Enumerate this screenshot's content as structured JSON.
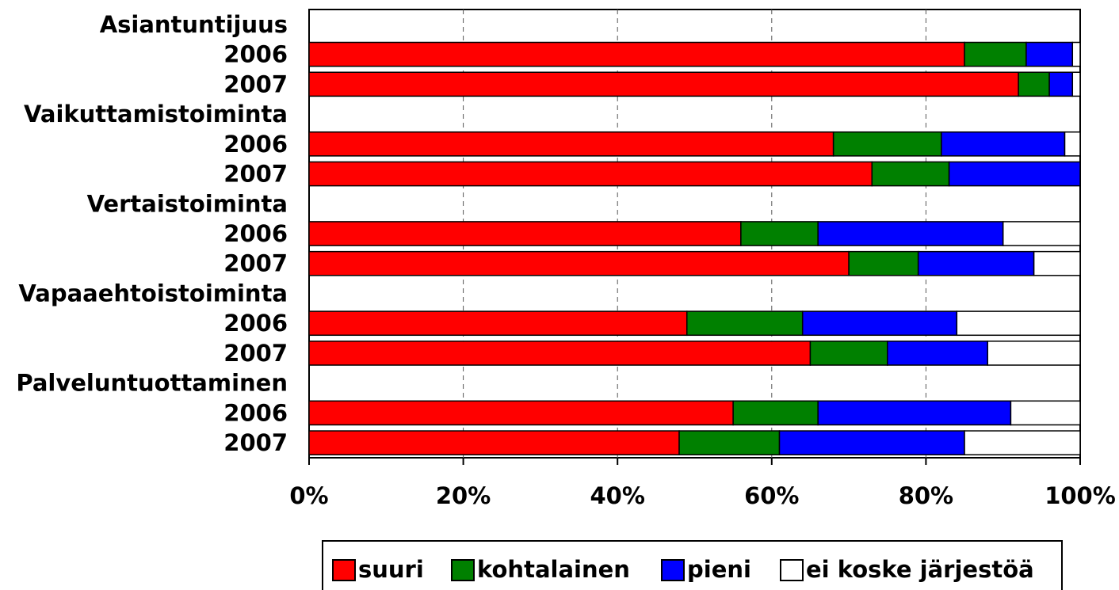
{
  "chart_data": {
    "type": "stacked_barh",
    "categories": [
      "Asiantuntijuus",
      "2006",
      "2007",
      "Vaikuttamistoiminta",
      "2006",
      "2007",
      "Vertaistoiminta",
      "2006",
      "2007",
      "Vapaaehtoistoiminta",
      "2006",
      "2007",
      "Palveluntuottaminen",
      "2006",
      "2007"
    ],
    "series": [
      {
        "name": "suuri",
        "color": "#ff0000",
        "values": [
          null,
          85,
          92,
          null,
          68,
          73,
          null,
          56,
          70,
          null,
          49,
          65,
          null,
          55,
          48
        ]
      },
      {
        "name": "kohtalainen",
        "color": "#008000",
        "values": [
          null,
          8,
          4,
          null,
          14,
          10,
          null,
          10,
          9,
          null,
          15,
          10,
          null,
          11,
          13
        ]
      },
      {
        "name": "pieni",
        "color": "#0000ff",
        "values": [
          null,
          6,
          3,
          null,
          16,
          17,
          null,
          24,
          15,
          null,
          20,
          13,
          null,
          25,
          24
        ]
      },
      {
        "name": "ei koske järjestöä",
        "color": "#ffffff",
        "values": [
          null,
          1,
          1,
          null,
          2,
          0,
          null,
          10,
          6,
          null,
          16,
          12,
          null,
          9,
          15
        ]
      }
    ],
    "xlim": [
      0,
      100
    ],
    "xticks": [
      {
        "value": 0,
        "label": "0%"
      },
      {
        "value": 20,
        "label": "20%"
      },
      {
        "value": 40,
        "label": "40%"
      },
      {
        "value": 60,
        "label": "60%"
      },
      {
        "value": 80,
        "label": "80%"
      },
      {
        "value": 100,
        "label": "100%"
      }
    ],
    "grid": true,
    "legend": "bottom"
  }
}
